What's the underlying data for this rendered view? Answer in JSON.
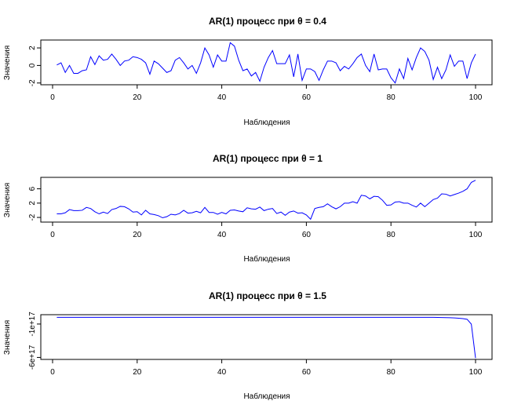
{
  "colors": {
    "series": "#0000ff",
    "frame": "#000000",
    "background": "#ffffff"
  },
  "chart_data": [
    {
      "type": "line",
      "title": "AR(1) процесс при θ = 0.4",
      "xlabel": "Наблюдения",
      "ylabel": "Значения",
      "xlim": [
        1,
        100
      ],
      "ylim": [
        -2.2,
        2.9
      ],
      "xticks": [
        0,
        20,
        40,
        60,
        80,
        100
      ],
      "xtick_labels": [
        "0",
        "20",
        "40",
        "60",
        "80",
        "100"
      ],
      "yticks": [
        -2,
        0,
        2
      ],
      "ytick_labels": [
        "-2",
        "0",
        "2"
      ],
      "grid": false,
      "x_start": 1,
      "values": [
        0.05,
        0.3,
        -0.8,
        0.0,
        -0.9,
        -0.9,
        -0.6,
        -0.5,
        1.0,
        0.1,
        1.1,
        0.6,
        0.7,
        1.3,
        0.7,
        0.0,
        0.5,
        0.6,
        1.0,
        0.9,
        0.7,
        0.3,
        -1.0,
        0.5,
        0.2,
        -0.3,
        -0.8,
        -0.6,
        0.6,
        0.9,
        0.3,
        -0.4,
        0.0,
        -0.9,
        0.3,
        2.0,
        1.2,
        -0.2,
        1.2,
        0.5,
        0.5,
        2.6,
        2.2,
        0.6,
        -0.6,
        -0.4,
        -1.2,
        -0.8,
        -1.8,
        -0.2,
        0.9,
        1.7,
        0.2,
        0.2,
        0.2,
        1.2,
        -1.3,
        1.3,
        -1.7,
        -0.4,
        -0.4,
        -0.7,
        -1.7,
        -0.5,
        0.5,
        0.5,
        0.3,
        -0.6,
        -0.1,
        -0.4,
        0.2,
        0.9,
        1.3,
        0.0,
        -0.7,
        1.3,
        -0.5,
        -0.4,
        -0.4,
        -1.4,
        -2.0,
        -0.4,
        -1.5,
        0.8,
        -0.5,
        0.9,
        2.0,
        1.6,
        0.6,
        -1.6,
        -0.2,
        -1.5,
        -0.5,
        1.2,
        -0.1,
        0.5,
        0.5,
        -1.5,
        0.3,
        1.3
      ]
    },
    {
      "type": "line",
      "title": "AR(1) процесс при θ = 1",
      "xlabel": "Наблюдения",
      "ylabel": "Значения",
      "xlim": [
        1,
        100
      ],
      "ylim": [
        -3.3,
        9.2
      ],
      "xticks": [
        0,
        20,
        40,
        60,
        80,
        100
      ],
      "xtick_labels": [
        "0",
        "20",
        "40",
        "60",
        "80",
        "100"
      ],
      "yticks": [
        -2,
        2,
        6
      ],
      "ytick_labels": [
        "-2",
        "2",
        "6"
      ],
      "grid": false,
      "x_start": 1,
      "values": [
        -1.0,
        -1.0,
        -0.7,
        0.2,
        -0.1,
        -0.1,
        0.0,
        0.8,
        0.5,
        -0.4,
        -1.0,
        -0.5,
        -0.9,
        0.2,
        0.5,
        1.1,
        1.0,
        0.4,
        -0.5,
        -0.4,
        -1.3,
        0.0,
        -1.0,
        -1.2,
        -1.5,
        -2.1,
        -1.8,
        -1.1,
        -1.3,
        -0.9,
        0.0,
        -0.8,
        -0.7,
        -0.3,
        -0.7,
        0.8,
        -0.6,
        -0.6,
        -1.1,
        -0.6,
        -1.0,
        0.0,
        0.1,
        -0.2,
        -0.4,
        0.7,
        0.4,
        0.3,
        0.9,
        -0.1,
        0.3,
        0.5,
        -0.9,
        -0.5,
        -1.4,
        -0.5,
        -0.2,
        -0.8,
        -0.7,
        -1.3,
        -2.5,
        0.5,
        0.8,
        1.0,
        1.8,
        1.0,
        0.4,
        1.0,
        2.0,
        2.0,
        2.4,
        2.0,
        4.2,
        4.0,
        3.2,
        3.9,
        3.8,
        2.8,
        1.4,
        1.5,
        2.3,
        2.4,
        2.0,
        2.0,
        1.4,
        0.9,
        2.0,
        1.0,
        2.0,
        3.0,
        3.4,
        4.6,
        4.5,
        4.0,
        4.4,
        4.8,
        5.3,
        6.0,
        7.8,
        8.4
      ]
    },
    {
      "type": "line",
      "title": "AR(1) процесс при θ = 1.5",
      "xlabel": "Наблюдения",
      "ylabel": "Значения",
      "xlim": [
        1,
        100
      ],
      "ylim": [
        -6.3e+17,
        4e+16
      ],
      "xticks": [
        0,
        20,
        40,
        60,
        80,
        100
      ],
      "xtick_labels": [
        "0",
        "20",
        "40",
        "60",
        "80",
        "100"
      ],
      "yticks": [
        -6e+17,
        -1e+17
      ],
      "ytick_labels": [
        "-6e+17",
        "-1e+17"
      ],
      "grid": false,
      "x_start": 1,
      "values": [
        0,
        0,
        0,
        0,
        0,
        0,
        0,
        0,
        0,
        0,
        0,
        0,
        0,
        0,
        0,
        0,
        0,
        0,
        0,
        0,
        0,
        0,
        0,
        0,
        0,
        0,
        0,
        0,
        0,
        0,
        0,
        0,
        0,
        0,
        0,
        0,
        0,
        0,
        0,
        0,
        0,
        0,
        0,
        0,
        0,
        0,
        0,
        0,
        0,
        0,
        0,
        0,
        0,
        0,
        0,
        0,
        0,
        0,
        0,
        0,
        0,
        0,
        0,
        0,
        0,
        0,
        0,
        0,
        0,
        0,
        0,
        0,
        0,
        0,
        -400000000000.0,
        -600000000000.0,
        -910000000000.0,
        -1360000000000.0,
        -2040000000000.0,
        -3060000000000.0,
        -4600000000000.0,
        -6900000000000.0,
        -10300000000000.0,
        -15500000000000.0,
        -23300000000000.0,
        -34900000000000.0,
        -52400000000000.0,
        -78600000000000.0,
        -118000000000000.0,
        -177000000000000.0,
        -1680000000000000.0,
        -2520000000000000.0,
        -3780000000000000.0,
        -5670000000000000.0,
        -8510000000000000.0,
        -1.277e+16,
        -1.915e+16,
        -2.873e+16,
        -1.01e+17,
        -6.1e+17
      ]
    }
  ]
}
